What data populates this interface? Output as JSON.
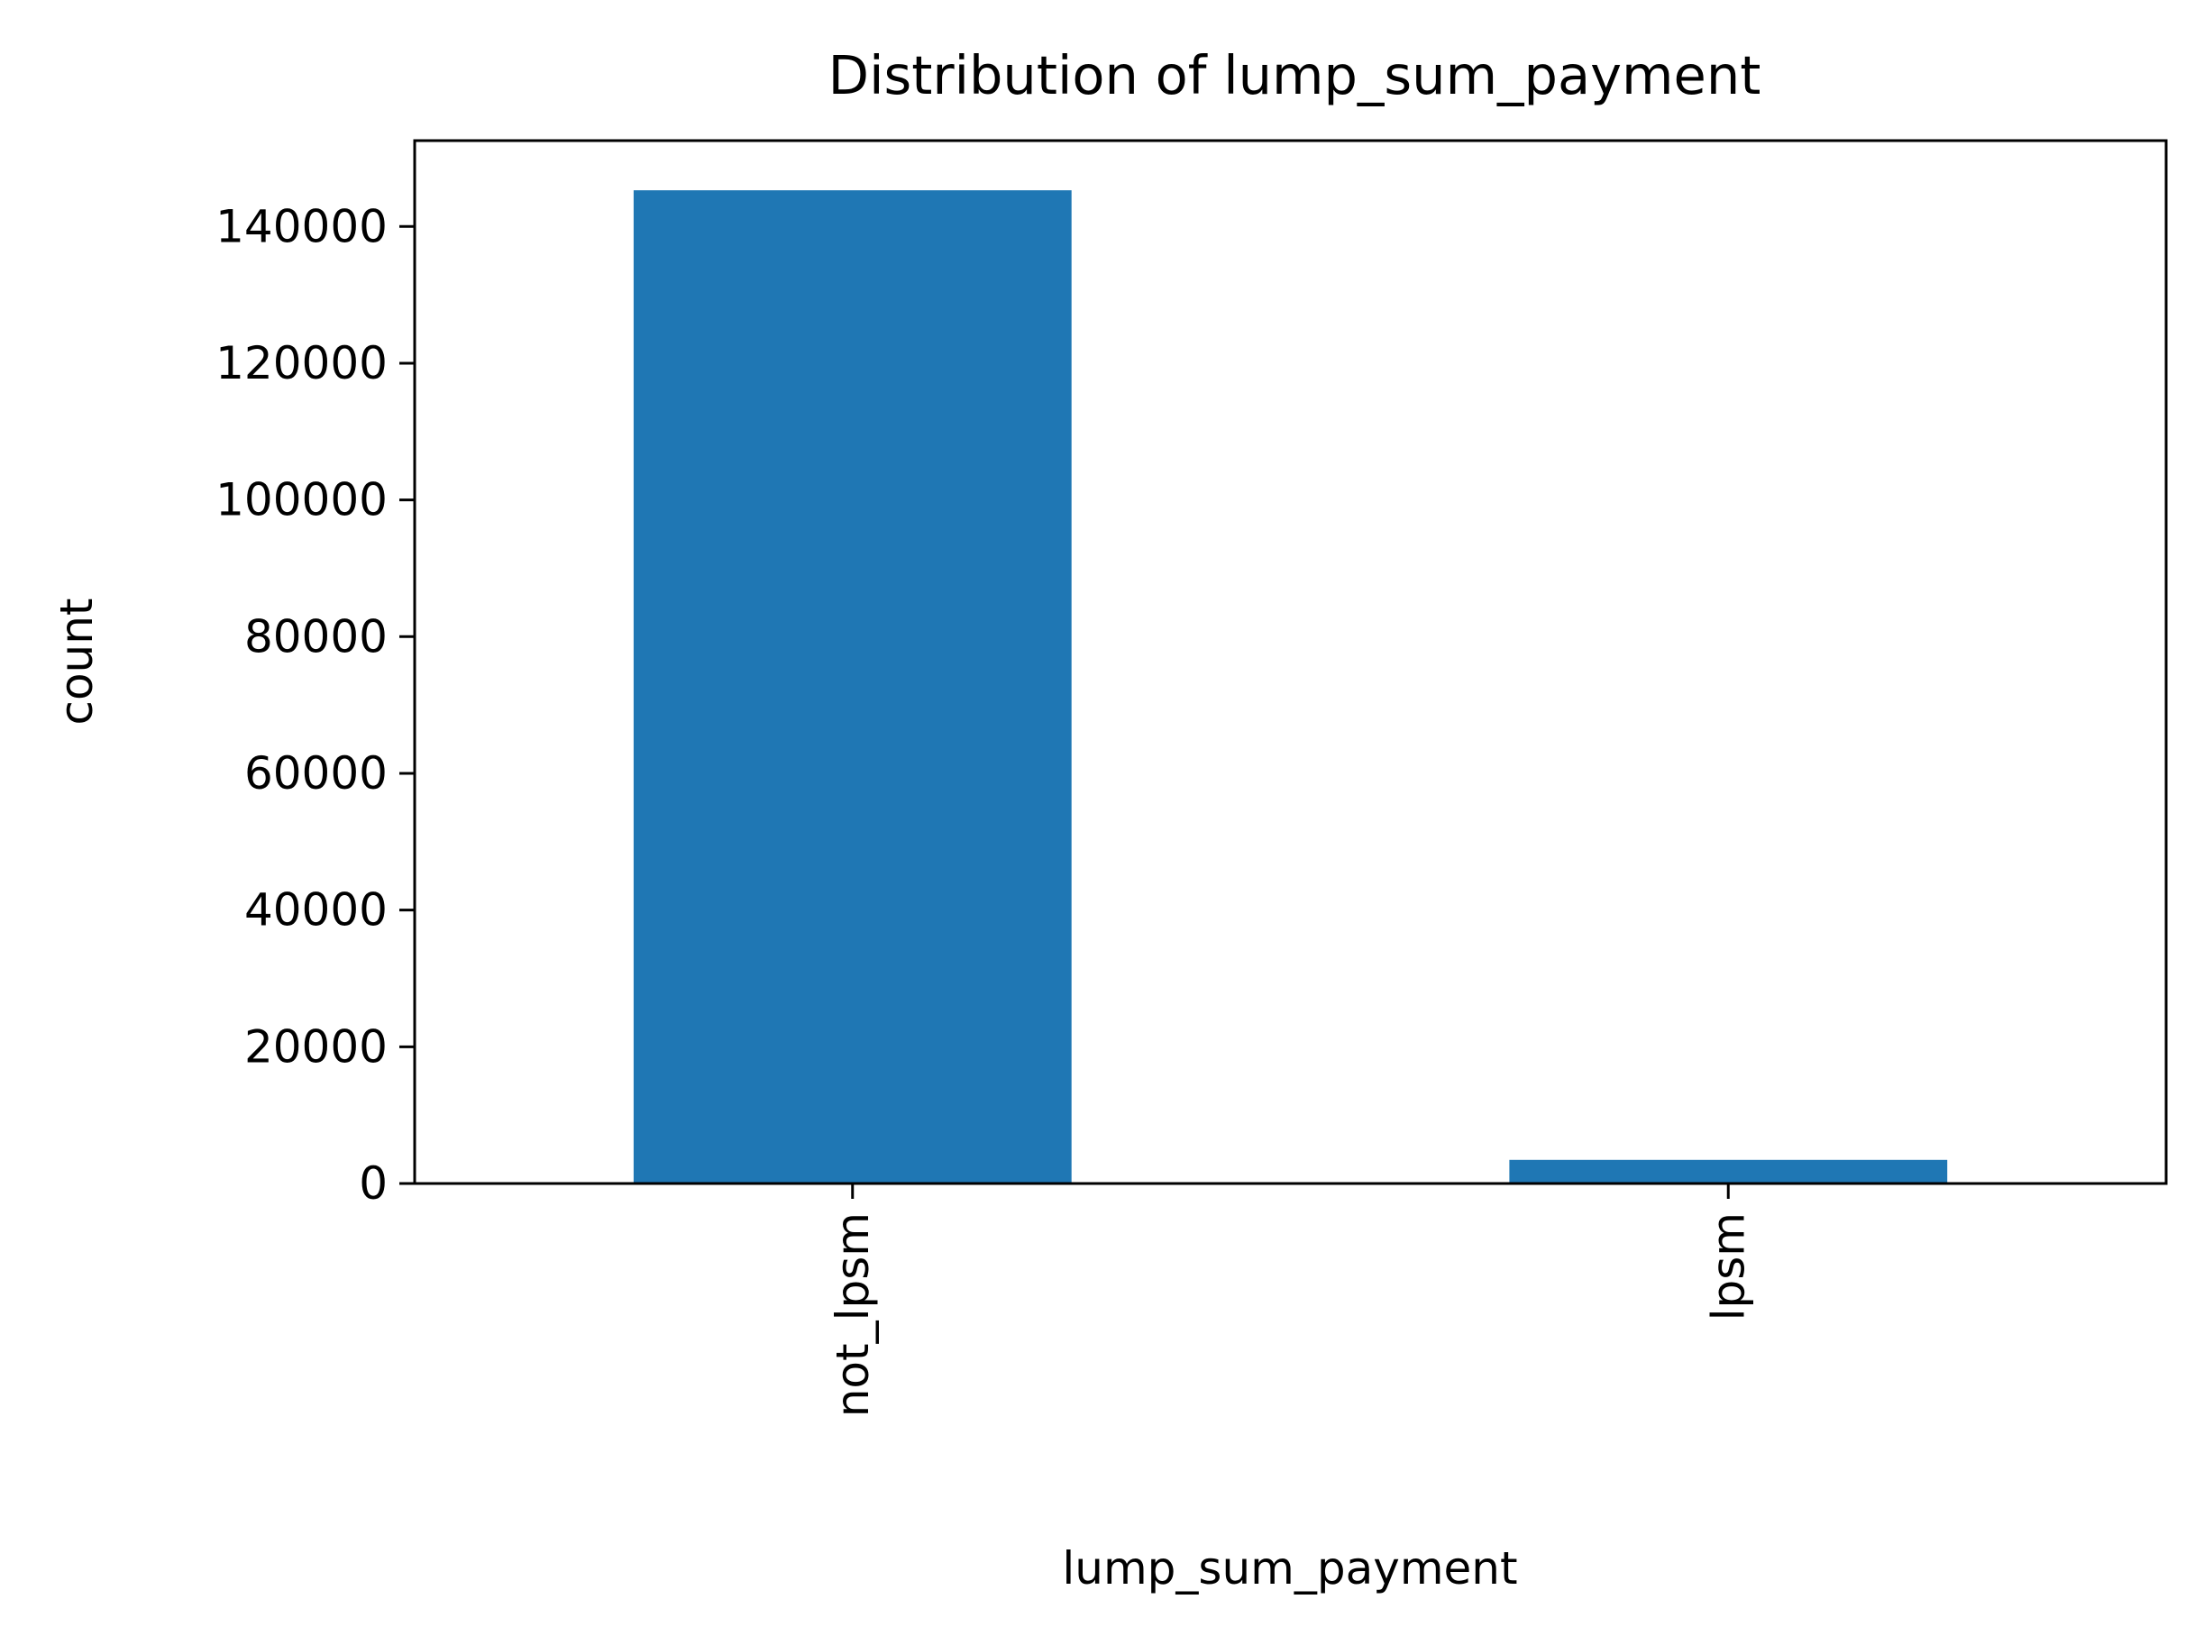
{
  "chart_data": {
    "type": "bar",
    "title": "Distribution of lump_sum_payment",
    "xlabel": "lump_sum_payment",
    "ylabel": "count",
    "categories": [
      "not_lpsm",
      "lpsm"
    ],
    "values": [
      145300,
      3450
    ],
    "ylim": [
      0,
      152565
    ],
    "yticks": [
      0,
      20000,
      40000,
      60000,
      80000,
      100000,
      120000,
      140000
    ],
    "ytick_labels": [
      "0",
      "20000",
      "40000",
      "60000",
      "80000",
      "100000",
      "120000",
      "140000"
    ],
    "xtick_rotation": "vertical",
    "grid": false,
    "legend": "none",
    "bar_color": "#1f77b4"
  }
}
